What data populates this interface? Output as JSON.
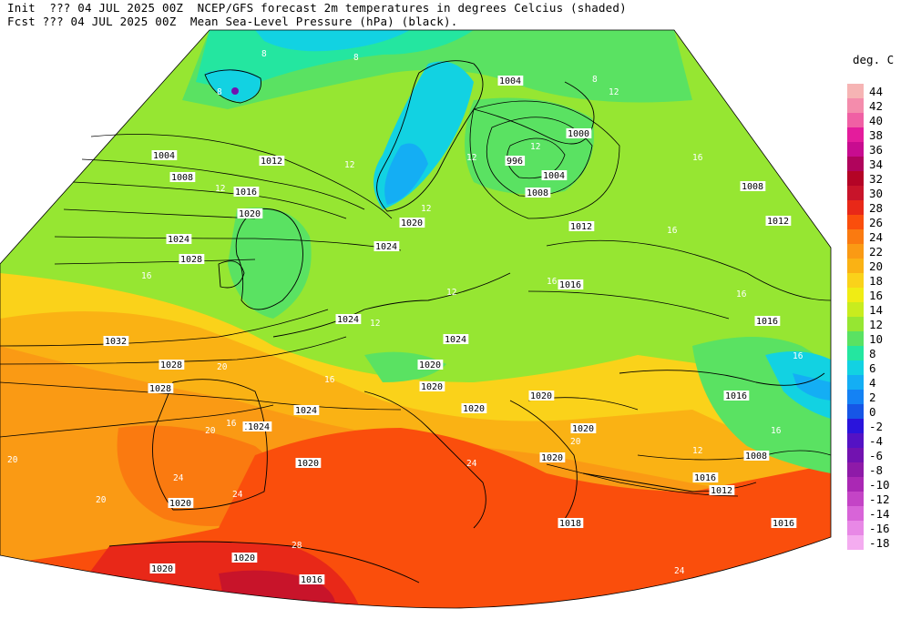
{
  "header": {
    "line1": "Init  ??? 04 JUL 2025 00Z  NCEP/GFS forecast 2m temperatures in degrees Celcius (shaded)",
    "line2": "Fcst ??? 04 JUL 2025 00Z  Mean Sea-Level Pressure (hPa) (black)."
  },
  "legend": {
    "title": "deg. C",
    "entries": [
      {
        "label": "44",
        "color": "#f6b4b4"
      },
      {
        "label": "42",
        "color": "#f48cac"
      },
      {
        "label": "40",
        "color": "#f060a4"
      },
      {
        "label": "38",
        "color": "#e41c9c"
      },
      {
        "label": "36",
        "color": "#c80c90"
      },
      {
        "label": "34",
        "color": "#b0045c"
      },
      {
        "label": "32",
        "color": "#b40426"
      },
      {
        "label": "30",
        "color": "#c8142a"
      },
      {
        "label": "28",
        "color": "#e82818"
      },
      {
        "label": "26",
        "color": "#fa4e0c"
      },
      {
        "label": "24",
        "color": "#fa7a10"
      },
      {
        "label": "22",
        "color": "#fa9a14"
      },
      {
        "label": "20",
        "color": "#fab214"
      },
      {
        "label": "18",
        "color": "#fad21a"
      },
      {
        "label": "16",
        "color": "#f0ec14"
      },
      {
        "label": "14",
        "color": "#c8ec1e"
      },
      {
        "label": "12",
        "color": "#96e632"
      },
      {
        "label": "10",
        "color": "#5ae262"
      },
      {
        "label": "8",
        "color": "#24e6a0"
      },
      {
        "label": "6",
        "color": "#12d2e2"
      },
      {
        "label": "4",
        "color": "#14aef4"
      },
      {
        "label": "2",
        "color": "#1482f4"
      },
      {
        "label": "0",
        "color": "#1656e6"
      },
      {
        "label": "-2",
        "color": "#2a14dc"
      },
      {
        "label": "-4",
        "color": "#5412c4"
      },
      {
        "label": "-6",
        "color": "#7212b0"
      },
      {
        "label": "-8",
        "color": "#8e1aa8"
      },
      {
        "label": "-10",
        "color": "#aa28b4"
      },
      {
        "label": "-12",
        "color": "#c444c6"
      },
      {
        "label": "-14",
        "color": "#d864d8"
      },
      {
        "label": "-16",
        "color": "#e888e6"
      },
      {
        "label": "-18",
        "color": "#f4acf0"
      }
    ]
  },
  "isobar_labels": [
    "1004",
    "1008",
    "1012",
    "1016",
    "1020",
    "1024",
    "1028",
    "1032",
    "1004",
    "1000",
    "996",
    "1004",
    "1008",
    "1012",
    "1016",
    "1008",
    "1012",
    "1016",
    "1020",
    "1024",
    "1024",
    "1024",
    "1020",
    "1020",
    "1020",
    "1020",
    "1016",
    "1016",
    "1012",
    "1008",
    "1020",
    "1024",
    "1020",
    "1020",
    "1024",
    "1028",
    "1020",
    "1016",
    "1020",
    "1018",
    "1020",
    "1016",
    "1028",
    "1024"
  ],
  "temp_labels": [
    "8",
    "8",
    "8",
    "8",
    "12",
    "12",
    "12",
    "12",
    "16",
    "12",
    "12",
    "12",
    "16",
    "16",
    "16",
    "16",
    "12",
    "20",
    "20",
    "20",
    "20",
    "24",
    "24",
    "24",
    "20",
    "28",
    "24",
    "16",
    "12",
    "16",
    "16",
    "16"
  ]
}
